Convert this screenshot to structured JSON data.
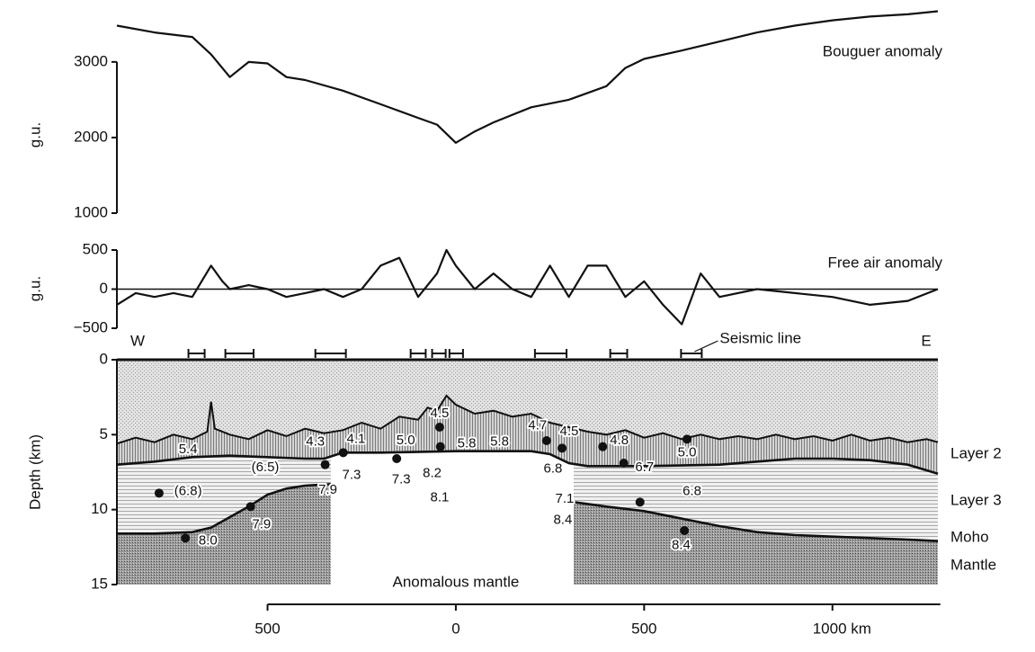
{
  "chart_data": [
    {
      "type": "line",
      "title": "Bouguer anomaly",
      "ylabel": "g.u.",
      "xlim": [
        -900,
        1280
      ],
      "ylim": [
        1000,
        3700
      ],
      "yticks": [
        1000,
        2000,
        3000
      ],
      "color": "#111111",
      "x": [
        -900,
        -800,
        -700,
        -650,
        -600,
        -550,
        -500,
        -450,
        -400,
        -300,
        -200,
        -100,
        -50,
        0,
        50,
        100,
        200,
        300,
        400,
        450,
        500,
        600,
        700,
        800,
        900,
        1000,
        1100,
        1200,
        1280
      ],
      "values": [
        3480,
        3390,
        3330,
        3100,
        2800,
        3000,
        2980,
        2800,
        2760,
        2620,
        2440,
        2260,
        2170,
        1930,
        2080,
        2200,
        2400,
        2500,
        2680,
        2920,
        3040,
        3150,
        3270,
        3390,
        3480,
        3550,
        3600,
        3630,
        3670
      ]
    },
    {
      "type": "line",
      "title": "Free air anomaly",
      "ylabel": "g.u.",
      "xlim": [
        -900,
        1280
      ],
      "ylim": [
        -500,
        500
      ],
      "yticks": [
        {
          "value": -500,
          "label": "−500"
        },
        0,
        500
      ],
      "color": "#111111",
      "zero_line": true,
      "x": [
        -900,
        -850,
        -800,
        -750,
        -700,
        -650,
        -620,
        -600,
        -550,
        -500,
        -450,
        -400,
        -350,
        -300,
        -250,
        -200,
        -150,
        -100,
        -50,
        -25,
        0,
        50,
        100,
        150,
        200,
        250,
        300,
        350,
        400,
        450,
        500,
        550,
        600,
        650,
        700,
        800,
        900,
        1000,
        1100,
        1200,
        1280
      ],
      "values": [
        -200,
        -50,
        -100,
        -50,
        -100,
        300,
        100,
        0,
        50,
        0,
        -100,
        -50,
        0,
        -100,
        0,
        300,
        400,
        -100,
        200,
        500,
        300,
        0,
        200,
        0,
        -100,
        300,
        -100,
        300,
        300,
        -100,
        100,
        -200,
        -450,
        200,
        -100,
        0,
        -50,
        -100,
        -200,
        -150,
        0
      ]
    },
    {
      "type": "cross_section",
      "ylabel": "Depth (km)",
      "west": "W",
      "east": "E",
      "seismic_label": "Seismic line",
      "mantle_label": "Mantle",
      "anomalous_label": "Anomalous mantle",
      "xlim": [
        -900,
        1280
      ],
      "xticks": [
        {
          "value": -500,
          "label": "500"
        },
        0,
        500,
        {
          "value": 1000,
          "label": "1000 km"
        }
      ],
      "ylim": [
        15,
        0
      ],
      "yticks": [
        0,
        5,
        10,
        15
      ],
      "seismic_lines": [
        [
          -710,
          -667
        ],
        [
          -612,
          -537
        ],
        [
          -373,
          -292
        ],
        [
          -120,
          -80
        ],
        [
          -63,
          -27
        ],
        [
          -17,
          19
        ],
        [
          210,
          294
        ],
        [
          410,
          455
        ],
        [
          598,
          653
        ]
      ],
      "series": [
        {
          "name": "Layer 2",
          "color": "#111111",
          "x": [
            -900,
            -850,
            -800,
            -750,
            -700,
            -660,
            -650,
            -640,
            -600,
            -550,
            -500,
            -450,
            -400,
            -350,
            -300,
            -250,
            -200,
            -150,
            -100,
            -75,
            -50,
            -25,
            0,
            25,
            50,
            100,
            150,
            200,
            250,
            300,
            350,
            400,
            450,
            500,
            550,
            600,
            650,
            700,
            750,
            800,
            850,
            900,
            950,
            1000,
            1050,
            1100,
            1150,
            1200,
            1250,
            1280
          ],
          "values": [
            5.6,
            5.2,
            5.5,
            5.0,
            5.3,
            4.8,
            2.8,
            4.6,
            5.0,
            5.3,
            4.7,
            5.1,
            4.6,
            4.9,
            4.7,
            4.2,
            4.6,
            3.8,
            4.0,
            3.2,
            3.4,
            2.4,
            3.0,
            3.3,
            3.6,
            3.4,
            3.8,
            3.6,
            4.2,
            4.5,
            4.8,
            5.0,
            4.7,
            5.2,
            4.9,
            5.3,
            5.0,
            5.3,
            5.1,
            5.3,
            5.0,
            5.3,
            5.1,
            5.4,
            5.0,
            5.4,
            5.2,
            5.5,
            5.3,
            5.5
          ]
        },
        {
          "name": "Layer 3",
          "color": "#111111",
          "x": [
            -900,
            -800,
            -700,
            -600,
            -500,
            -400,
            -350,
            -300,
            -200,
            0,
            200,
            250,
            300,
            350,
            500,
            700,
            800,
            900,
            1000,
            1100,
            1200,
            1280
          ],
          "values": [
            7.0,
            6.8,
            6.5,
            6.4,
            6.5,
            6.6,
            6.6,
            6.2,
            6.2,
            6.1,
            6.1,
            6.3,
            6.9,
            7.1,
            7.1,
            7.0,
            6.8,
            6.6,
            6.6,
            6.7,
            7.0,
            7.6
          ]
        },
        {
          "name": "Moho",
          "color": "#111111",
          "x": [
            -900,
            -800,
            -700,
            -650,
            -600,
            -550,
            -500,
            -450,
            -400,
            -332,
            0,
            313,
            400,
            500,
            600,
            700,
            800,
            900,
            1000,
            1100,
            1200,
            1280
          ],
          "values": [
            11.6,
            11.6,
            11.5,
            11.2,
            10.5,
            9.8,
            9.0,
            8.6,
            8.4,
            8.3,
            null,
            9.5,
            9.8,
            10.1,
            10.6,
            11.1,
            11.5,
            11.7,
            11.8,
            11.9,
            12.0,
            12.1
          ]
        }
      ],
      "stations": [
        [
          -718,
          11.9
        ],
        [
          -788,
          8.9
        ],
        [
          -545,
          9.8
        ],
        [
          -347,
          7.0
        ],
        [
          -299,
          6.2
        ],
        [
          -157,
          6.6
        ],
        [
          -43,
          4.5
        ],
        [
          -41,
          5.8
        ],
        [
          241,
          5.4
        ],
        [
          282,
          5.9
        ],
        [
          390,
          5.8
        ],
        [
          446,
          6.9
        ],
        [
          489,
          9.5
        ],
        [
          607,
          11.4
        ],
        [
          614,
          5.3
        ]
      ],
      "velocities": [
        {
          "label": "5.4",
          "x": -711,
          "depth": 6.0
        },
        {
          "label": "(6.5)",
          "x": -506,
          "depth": 7.2
        },
        {
          "label": "(6.8)",
          "x": -711,
          "depth": 8.8
        },
        {
          "label": "7.9",
          "x": -516,
          "depth": 11.0
        },
        {
          "label": "8.0",
          "x": -658,
          "depth": 12.1
        },
        {
          "label": "4.3",
          "x": -373,
          "depth": 5.5
        },
        {
          "label": "4.1",
          "x": -265,
          "depth": 5.3
        },
        {
          "label": "7.3",
          "x": -277,
          "depth": 7.7
        },
        {
          "label": "7.9",
          "x": -340,
          "depth": 8.7
        },
        {
          "label": "7.3",
          "x": -145,
          "depth": 8.0
        },
        {
          "label": "5.0",
          "x": -133,
          "depth": 5.4
        },
        {
          "label": "4.5",
          "x": -43,
          "depth": 3.6
        },
        {
          "label": "5.8",
          "x": 29,
          "depth": 5.6
        },
        {
          "label": "8.2",
          "x": -63,
          "depth": 7.6
        },
        {
          "label": "8.1",
          "x": -43,
          "depth": 9.2
        },
        {
          "label": "5.8",
          "x": 116,
          "depth": 5.5
        },
        {
          "label": "6.8",
          "x": 258,
          "depth": 7.3
        },
        {
          "label": "7.1",
          "x": 289,
          "depth": 9.3
        },
        {
          "label": "4.7",
          "x": 217,
          "depth": 4.4
        },
        {
          "label": "4.5",
          "x": 301,
          "depth": 4.8
        },
        {
          "label": "4.8",
          "x": 434,
          "depth": 5.4
        },
        {
          "label": "6.7",
          "x": 501,
          "depth": 7.2
        },
        {
          "label": "5.0",
          "x": 614,
          "depth": 6.2
        },
        {
          "label": "6.8",
          "x": 627,
          "depth": 8.8
        },
        {
          "label": "8.4",
          "x": 284,
          "depth": 10.7
        },
        {
          "label": "8.4",
          "x": 598,
          "depth": 12.4
        }
      ]
    }
  ]
}
